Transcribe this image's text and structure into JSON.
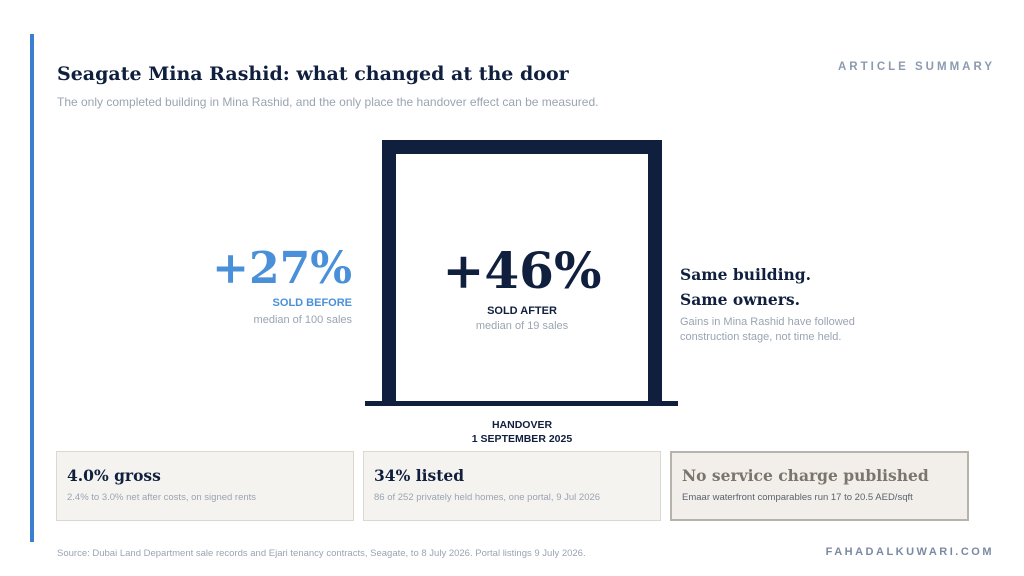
{
  "header": {
    "tag": "ARTICLE SUMMARY",
    "title": "Seagate Mina Rashid: what changed at the door",
    "subtitle": "The only completed building in Mina Rashid, and the only place the handover effect can be measured."
  },
  "before": {
    "value": "+27%",
    "label": "SOLD BEFORE",
    "sub": "median of 100 sales"
  },
  "after": {
    "value": "+46%",
    "label": "SOLD AFTER",
    "sub": "median of 19 sales"
  },
  "handover": {
    "line1": "HANDOVER",
    "line2": "1 SEPTEMBER 2025"
  },
  "takeaway": {
    "line1": "Same building.",
    "line2": "Same owners.",
    "sub": "Gains in Mina Rashid have followed construction stage, not time held."
  },
  "cards": [
    {
      "title": "4.0% gross",
      "sub": "2.4% to 3.0% net after costs, on signed rents"
    },
    {
      "title": "34% listed",
      "sub": "86 of 252 privately held homes, one portal, 9 Jul 2026"
    },
    {
      "title": "No service charge published",
      "sub": "Emaar waterfront comparables run 17 to 20.5 AED/sqft"
    }
  ],
  "footer": {
    "source": "Source: Dubai Land Department sale records and Ejari tenancy contracts, Seagate, to 8 July 2026. Portal listings 9 July 2026.",
    "site": "FAHADALKUWARI.COM"
  },
  "colors": {
    "navy": "#0f1f3d",
    "accent_blue": "#4a90d9",
    "muted": "#9aa4b2",
    "card_bg": "#f5f3ef"
  }
}
